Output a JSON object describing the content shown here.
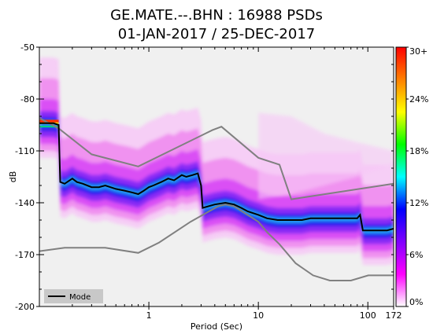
{
  "chart_data": {
    "type": "heatmap",
    "title_line1": "GE.MATE.--.BHN : 16988 PSDs",
    "title_line2": "01-JAN-2017 / 25-DEC-2017",
    "xlabel": "Period (Sec)",
    "ylabel": "dB",
    "x_scale": "log",
    "xlim": [
      0.1,
      172
    ],
    "ylim": [
      -200,
      -50
    ],
    "x_ticks": [
      {
        "value": 1,
        "label": "1"
      },
      {
        "value": 10,
        "label": "10"
      },
      {
        "value": 100,
        "label": "100"
      },
      {
        "value": 172,
        "label": "172"
      }
    ],
    "y_ticks": [
      {
        "value": -50,
        "label": "-50"
      },
      {
        "value": -80,
        "label": "-80"
      },
      {
        "value": -110,
        "label": "-110"
      },
      {
        "value": -140,
        "label": "-140"
      },
      {
        "value": -170,
        "label": "-170"
      },
      {
        "value": -200,
        "label": "-200"
      }
    ],
    "colorbar": {
      "range_percent": [
        0,
        30
      ],
      "labels": [
        {
          "value": 0,
          "label": "0%"
        },
        {
          "value": 6,
          "label": "6%"
        },
        {
          "value": 12,
          "label": "12%"
        },
        {
          "value": 18,
          "label": "18%"
        },
        {
          "value": 24,
          "label": "24%"
        },
        {
          "value": 30,
          "label": "30+"
        }
      ],
      "colors": [
        "#ffffff",
        "#ff00ff",
        "#8000ff",
        "#0000ff",
        "#00ffff",
        "#00ff00",
        "#ffff00",
        "#ff8000",
        "#ff0000"
      ]
    },
    "legend": {
      "placement": "bottom-left",
      "entries": [
        {
          "name": "Mode",
          "color": "#000000"
        }
      ]
    },
    "mode_curve": {
      "periods": [
        0.1,
        0.135,
        0.15,
        0.155,
        0.17,
        0.2,
        0.22,
        0.25,
        0.3,
        0.35,
        0.4,
        0.5,
        0.6,
        0.7,
        0.8,
        0.9,
        1.0,
        1.1,
        1.3,
        1.5,
        1.7,
        2.0,
        2.2,
        2.5,
        2.8,
        3.0,
        3.1,
        3.5,
        4.0,
        5.0,
        6.0,
        7.0,
        8.0,
        10.0,
        12.0,
        15.0,
        20.0,
        25.0,
        30.0,
        35.0,
        40.0,
        50.0,
        60.0,
        70.0,
        80.0,
        85.0,
        90.0,
        100.0,
        120.0,
        150.0,
        172.0
      ],
      "values": [
        -94,
        -94,
        -95,
        -128,
        -129,
        -126,
        -128,
        -129,
        -131,
        -131,
        -130,
        -132,
        -133,
        -134,
        -135,
        -133,
        -131,
        -130,
        -128,
        -126,
        -127,
        -124,
        -125,
        -124,
        -123,
        -130,
        -143,
        -142,
        -141,
        -140,
        -141,
        -143,
        -145,
        -147,
        -149,
        -150,
        -150,
        -150,
        -149,
        -149,
        -149,
        -149,
        -149,
        -149,
        -149,
        -147,
        -156,
        -156,
        -156,
        -156,
        -155
      ]
    },
    "noise_model_high": {
      "periods": [
        0.1,
        0.15,
        0.3,
        0.8,
        3.8,
        4.6,
        10.0,
        15.6,
        20.0,
        172.0
      ],
      "values": [
        -91,
        -97,
        -112,
        -119,
        -98,
        -96,
        -114,
        -118,
        -138,
        -129
      ]
    },
    "noise_model_low": {
      "periods": [
        0.1,
        0.17,
        0.4,
        0.8,
        1.24,
        2.4,
        4.3,
        5.0,
        6.0,
        10.0,
        12.0,
        15.6,
        21.9,
        31.6,
        45.0,
        70.0,
        101.0,
        154.0,
        172.0
      ],
      "values": [
        -168,
        -166,
        -166,
        -169,
        -163,
        -151,
        -142,
        -141,
        -142,
        -151,
        -157,
        -164,
        -175,
        -182,
        -185,
        -185,
        -182,
        -182,
        -182
      ]
    }
  }
}
